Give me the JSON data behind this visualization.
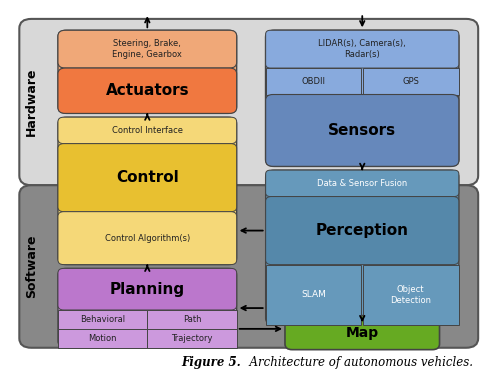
{
  "title_bold": "Figure 5.",
  "title_italic": "  Architecture of autonomous vehicles.",
  "hardware_bg": "#d8d8d8",
  "software_bg": "#888888",
  "actuators_light": "#f0a878",
  "actuators_dark": "#f07840",
  "sensors_light": "#88aadd",
  "sensors_mid": "#7799cc",
  "sensors_dark": "#6688bb",
  "control_light": "#f5d878",
  "control_dark": "#e8c030",
  "perception_light": "#6699bb",
  "perception_dark": "#5588aa",
  "planning_light": "#cc99dd",
  "planning_dark": "#bb77cc",
  "map_color": "#66aa22",
  "white": "#ffffff",
  "edge_dark": "#444444",
  "edge_mid": "#666666",
  "text_dark": "#222222",
  "label_hardware": "Hardware",
  "label_software": "Software",
  "actuators_sub_text": "Steering, Brake,\nEngine, Gearbox",
  "actuators_label": "Actuators",
  "sensors_sub_text": "LIDAR(s), Camera(s),\nRadar(s)",
  "sensors_obdii": "OBDII",
  "sensors_gps": "GPS",
  "sensors_label": "Sensors",
  "control_interface": "Control Interface",
  "control_label": "Control",
  "control_algo": "Control Algorithm(s)",
  "perception_fusion": "Data & Sensor Fusion",
  "perception_label": "Perception",
  "perception_slam": "SLAM",
  "perception_obj": "Object\nDetection",
  "planning_label": "Planning",
  "planning_behavioral": "Behavioral",
  "planning_path": "Path",
  "planning_motion": "Motion",
  "planning_trajectory": "Trajectory",
  "map_label": "Map"
}
